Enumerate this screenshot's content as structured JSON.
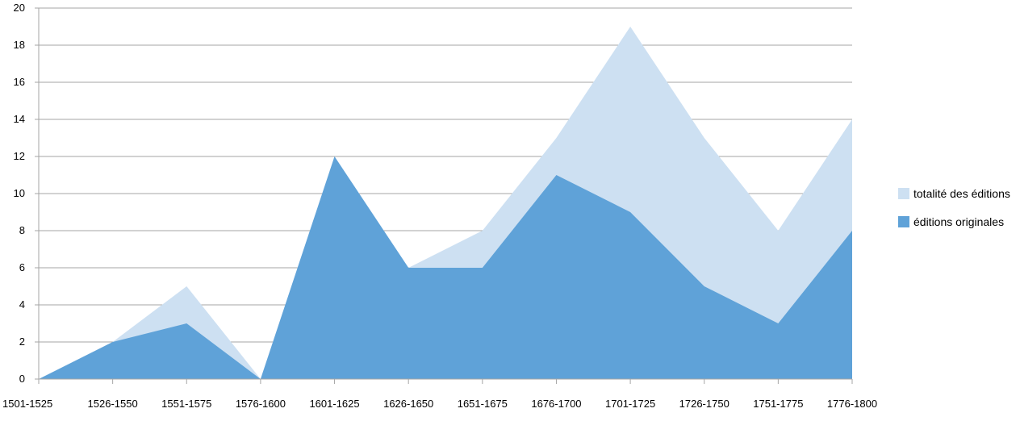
{
  "chart_data": {
    "type": "area",
    "title": "",
    "xlabel": "",
    "ylabel": "",
    "categories": [
      "1501-1525",
      "1526-1550",
      "1551-1575",
      "1576-1600",
      "1601-1625",
      "1626-1650",
      "1651-1675",
      "1676-1700",
      "1701-1725",
      "1726-1750",
      "1751-1775",
      "1776-1800"
    ],
    "ylim": [
      0,
      20
    ],
    "yticks": [
      "0",
      "2",
      "4",
      "6",
      "8",
      "10",
      "12",
      "14",
      "16",
      "18",
      "20"
    ],
    "grid": true,
    "legend_position": "right",
    "series": [
      {
        "name": "totalité des éditions",
        "color": "#cde0f2",
        "values": [
          0,
          2,
          5,
          0,
          12,
          6,
          8,
          13,
          19,
          13,
          8,
          14
        ]
      },
      {
        "name": "éditions originales",
        "color": "#5fa2d8",
        "values": [
          0,
          2,
          3,
          0,
          12,
          6,
          6,
          11,
          9,
          5,
          3,
          8
        ]
      }
    ],
    "grid_color": "#a6a6a6"
  }
}
